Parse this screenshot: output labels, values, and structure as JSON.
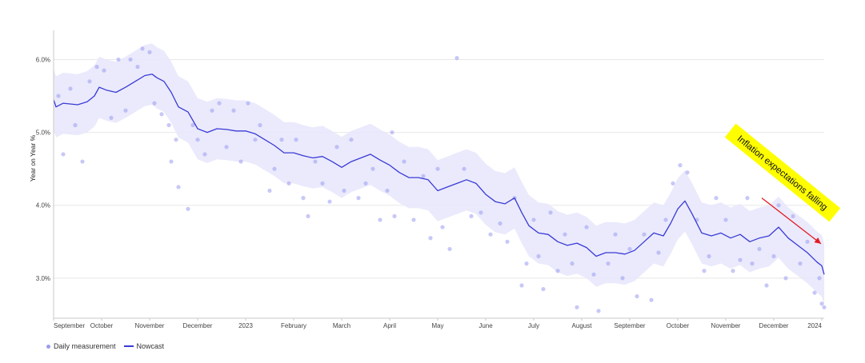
{
  "chart_data": {
    "type": "line",
    "title": "",
    "xlabel": "",
    "ylabel": "Year on Year %",
    "ylim": [
      2.45,
      6.4
    ],
    "yticks": [
      {
        "value": 3.0,
        "label": "3.0%"
      },
      {
        "value": 4.0,
        "label": "4.0%"
      },
      {
        "value": 5.0,
        "label": "5.0%"
      },
      {
        "value": 6.0,
        "label": "6.0%"
      }
    ],
    "x_range": [
      0,
      16.05
    ],
    "xticks": [
      {
        "pos": 0,
        "label": "September"
      },
      {
        "pos": 1,
        "label": "October"
      },
      {
        "pos": 2,
        "label": "November"
      },
      {
        "pos": 3,
        "label": "December"
      },
      {
        "pos": 4,
        "label": "2023"
      },
      {
        "pos": 5,
        "label": "February"
      },
      {
        "pos": 6,
        "label": "March"
      },
      {
        "pos": 7,
        "label": "April"
      },
      {
        "pos": 8,
        "label": "May"
      },
      {
        "pos": 9,
        "label": "June"
      },
      {
        "pos": 10,
        "label": "July"
      },
      {
        "pos": 11,
        "label": "August"
      },
      {
        "pos": 12,
        "label": "September"
      },
      {
        "pos": 13,
        "label": "October"
      },
      {
        "pos": 14,
        "label": "November"
      },
      {
        "pos": 15,
        "label": "December"
      },
      {
        "pos": 16,
        "label": "2024"
      }
    ],
    "series": [
      {
        "name": "Nowcast",
        "kind": "line",
        "points": [
          [
            0,
            5.45
          ],
          [
            0.05,
            5.35
          ],
          [
            0.2,
            5.4
          ],
          [
            0.5,
            5.38
          ],
          [
            0.7,
            5.42
          ],
          [
            0.85,
            5.5
          ],
          [
            0.95,
            5.62
          ],
          [
            1.1,
            5.58
          ],
          [
            1.3,
            5.55
          ],
          [
            1.5,
            5.62
          ],
          [
            1.7,
            5.7
          ],
          [
            1.9,
            5.78
          ],
          [
            2.05,
            5.8
          ],
          [
            2.15,
            5.75
          ],
          [
            2.3,
            5.7
          ],
          [
            2.45,
            5.55
          ],
          [
            2.6,
            5.35
          ],
          [
            2.8,
            5.28
          ],
          [
            3.0,
            5.05
          ],
          [
            3.2,
            5.0
          ],
          [
            3.4,
            5.05
          ],
          [
            3.6,
            5.04
          ],
          [
            3.8,
            5.02
          ],
          [
            4.0,
            5.02
          ],
          [
            4.2,
            4.98
          ],
          [
            4.4,
            4.9
          ],
          [
            4.6,
            4.82
          ],
          [
            4.8,
            4.72
          ],
          [
            5.0,
            4.72
          ],
          [
            5.2,
            4.68
          ],
          [
            5.4,
            4.65
          ],
          [
            5.6,
            4.67
          ],
          [
            5.8,
            4.6
          ],
          [
            6.0,
            4.52
          ],
          [
            6.2,
            4.6
          ],
          [
            6.4,
            4.65
          ],
          [
            6.6,
            4.7
          ],
          [
            6.8,
            4.62
          ],
          [
            7.0,
            4.55
          ],
          [
            7.2,
            4.45
          ],
          [
            7.4,
            4.38
          ],
          [
            7.6,
            4.38
          ],
          [
            7.8,
            4.35
          ],
          [
            8.0,
            4.2
          ],
          [
            8.2,
            4.25
          ],
          [
            8.4,
            4.3
          ],
          [
            8.6,
            4.35
          ],
          [
            8.8,
            4.3
          ],
          [
            9.0,
            4.15
          ],
          [
            9.2,
            4.05
          ],
          [
            9.4,
            4.02
          ],
          [
            9.6,
            4.1
          ],
          [
            9.75,
            3.9
          ],
          [
            9.9,
            3.72
          ],
          [
            10.1,
            3.62
          ],
          [
            10.3,
            3.6
          ],
          [
            10.5,
            3.5
          ],
          [
            10.7,
            3.45
          ],
          [
            10.9,
            3.48
          ],
          [
            11.1,
            3.42
          ],
          [
            11.3,
            3.3
          ],
          [
            11.5,
            3.35
          ],
          [
            11.7,
            3.35
          ],
          [
            11.9,
            3.33
          ],
          [
            12.1,
            3.38
          ],
          [
            12.3,
            3.5
          ],
          [
            12.5,
            3.62
          ],
          [
            12.7,
            3.58
          ],
          [
            12.85,
            3.75
          ],
          [
            13.0,
            3.95
          ],
          [
            13.15,
            4.06
          ],
          [
            13.3,
            3.88
          ],
          [
            13.5,
            3.62
          ],
          [
            13.7,
            3.58
          ],
          [
            13.9,
            3.62
          ],
          [
            14.1,
            3.55
          ],
          [
            14.3,
            3.6
          ],
          [
            14.5,
            3.5
          ],
          [
            14.7,
            3.55
          ],
          [
            14.9,
            3.58
          ],
          [
            15.1,
            3.7
          ],
          [
            15.3,
            3.55
          ],
          [
            15.5,
            3.45
          ],
          [
            15.7,
            3.35
          ],
          [
            15.9,
            3.22
          ],
          [
            16.0,
            3.17
          ],
          [
            16.05,
            3.05
          ]
        ]
      },
      {
        "name": "Daily measurement",
        "kind": "scatter",
        "note_points": "sampled readings around the nowcast, roughly within ±0.45 pp",
        "points": [
          [
            0.1,
            5.5
          ],
          [
            0.2,
            4.7
          ],
          [
            0.35,
            5.6
          ],
          [
            0.45,
            5.1
          ],
          [
            0.6,
            4.6
          ],
          [
            0.75,
            5.7
          ],
          [
            0.9,
            5.9
          ],
          [
            1.05,
            5.85
          ],
          [
            1.2,
            5.2
          ],
          [
            1.35,
            6.0
          ],
          [
            1.5,
            5.3
          ],
          [
            1.6,
            6.0
          ],
          [
            1.75,
            5.9
          ],
          [
            1.85,
            6.15
          ],
          [
            2.0,
            6.1
          ],
          [
            2.1,
            5.4
          ],
          [
            2.25,
            5.25
          ],
          [
            2.4,
            5.1
          ],
          [
            2.45,
            4.6
          ],
          [
            2.55,
            4.9
          ],
          [
            2.6,
            4.25
          ],
          [
            2.8,
            3.95
          ],
          [
            2.9,
            5.1
          ],
          [
            3.0,
            4.9
          ],
          [
            3.15,
            4.7
          ],
          [
            3.3,
            5.3
          ],
          [
            3.45,
            5.4
          ],
          [
            3.6,
            4.8
          ],
          [
            3.75,
            5.3
          ],
          [
            3.9,
            4.6
          ],
          [
            4.05,
            5.4
          ],
          [
            4.2,
            4.9
          ],
          [
            4.3,
            5.1
          ],
          [
            4.5,
            4.2
          ],
          [
            4.6,
            4.5
          ],
          [
            4.75,
            4.9
          ],
          [
            4.9,
            4.3
          ],
          [
            5.05,
            4.9
          ],
          [
            5.2,
            4.1
          ],
          [
            5.3,
            3.85
          ],
          [
            5.45,
            4.6
          ],
          [
            5.6,
            4.3
          ],
          [
            5.75,
            4.05
          ],
          [
            5.9,
            4.8
          ],
          [
            6.05,
            4.2
          ],
          [
            6.2,
            4.9
          ],
          [
            6.35,
            4.1
          ],
          [
            6.5,
            4.3
          ],
          [
            6.65,
            4.5
          ],
          [
            6.8,
            3.8
          ],
          [
            6.95,
            4.2
          ],
          [
            7.05,
            5.0
          ],
          [
            7.1,
            3.85
          ],
          [
            7.3,
            4.6
          ],
          [
            7.5,
            3.8
          ],
          [
            7.7,
            4.4
          ],
          [
            7.85,
            3.55
          ],
          [
            8.0,
            4.5
          ],
          [
            8.1,
            3.7
          ],
          [
            8.25,
            3.4
          ],
          [
            8.4,
            6.02
          ],
          [
            8.55,
            4.5
          ],
          [
            8.7,
            3.85
          ],
          [
            8.9,
            3.9
          ],
          [
            9.1,
            3.6
          ],
          [
            9.3,
            3.75
          ],
          [
            9.45,
            3.5
          ],
          [
            9.6,
            4.1
          ],
          [
            9.75,
            2.9
          ],
          [
            9.85,
            3.2
          ],
          [
            10.0,
            3.8
          ],
          [
            10.1,
            3.3
          ],
          [
            10.2,
            2.85
          ],
          [
            10.35,
            3.9
          ],
          [
            10.5,
            3.1
          ],
          [
            10.65,
            3.6
          ],
          [
            10.8,
            3.2
          ],
          [
            10.9,
            2.6
          ],
          [
            11.1,
            3.7
          ],
          [
            11.25,
            3.05
          ],
          [
            11.35,
            2.55
          ],
          [
            11.55,
            3.2
          ],
          [
            11.7,
            3.6
          ],
          [
            11.85,
            3.0
          ],
          [
            12.0,
            3.4
          ],
          [
            12.15,
            2.75
          ],
          [
            12.3,
            3.6
          ],
          [
            12.45,
            2.7
          ],
          [
            12.6,
            3.35
          ],
          [
            12.75,
            3.8
          ],
          [
            12.9,
            4.3
          ],
          [
            13.05,
            4.55
          ],
          [
            13.2,
            4.45
          ],
          [
            13.4,
            3.8
          ],
          [
            13.55,
            3.1
          ],
          [
            13.65,
            3.3
          ],
          [
            13.8,
            4.1
          ],
          [
            14.0,
            3.8
          ],
          [
            14.15,
            3.1
          ],
          [
            14.3,
            3.25
          ],
          [
            14.45,
            4.1
          ],
          [
            14.55,
            3.2
          ],
          [
            14.7,
            3.4
          ],
          [
            14.85,
            2.9
          ],
          [
            15.0,
            3.3
          ],
          [
            15.1,
            4.0
          ],
          [
            15.25,
            3.0
          ],
          [
            15.4,
            3.85
          ],
          [
            15.55,
            3.2
          ],
          [
            15.7,
            3.5
          ],
          [
            15.85,
            2.8
          ],
          [
            15.95,
            3.0
          ],
          [
            16.0,
            2.65
          ],
          [
            16.05,
            2.6
          ]
        ]
      }
    ],
    "band": {
      "label": "nowcast uncertainty",
      "spread": 0.42
    },
    "annotation": {
      "text": "Inflation expectations falling",
      "background": "#fefe00",
      "arrow_color": "#e31b23",
      "arrow_from": [
        14.75,
        4.1
      ],
      "arrow_to": [
        16.05,
        3.45
      ]
    },
    "legend": {
      "placement": "bottom-left",
      "items": [
        {
          "label": "Daily measurement",
          "marker": "dot"
        },
        {
          "label": "Nowcast",
          "marker": "line"
        }
      ]
    },
    "colors": {
      "line": "#3a3ad6",
      "dots": "#9b9bf0",
      "band": "#e6e6fb",
      "grid": "#e8e8e8",
      "axis": "#c8c8c8"
    },
    "grid": true
  }
}
